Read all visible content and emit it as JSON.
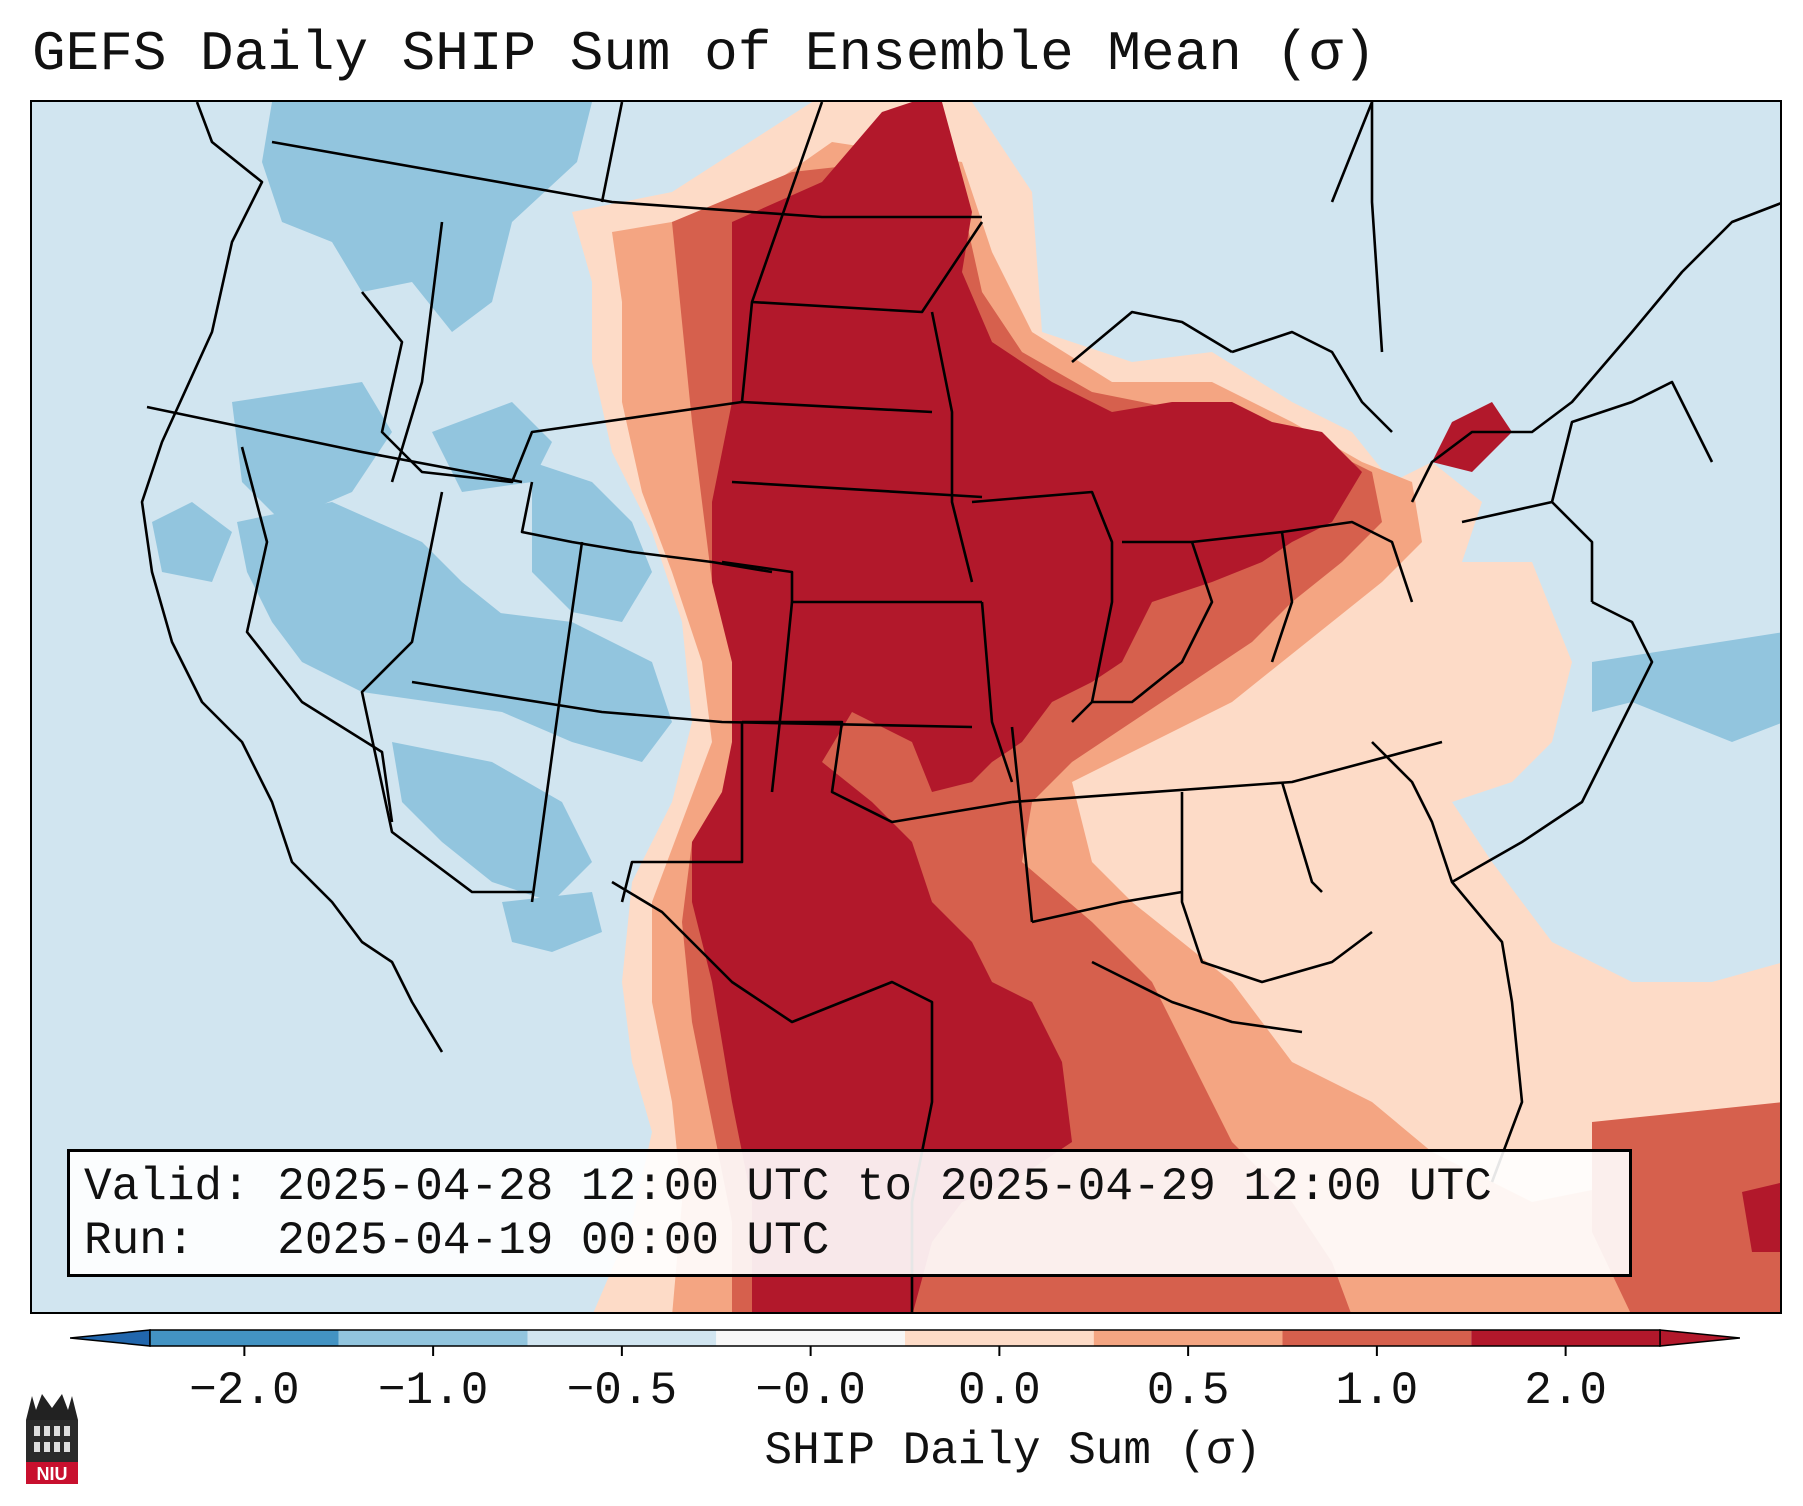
{
  "title": "GEFS Daily SHIP Sum of Ensemble Mean (σ)",
  "info": {
    "valid_label": "Valid:",
    "valid_value": "2025-04-28 12:00 UTC to 2025-04-29 12:00 UTC",
    "run_label": "Run:",
    "run_value": "2025-04-19 00:00 UTC"
  },
  "colorbar": {
    "label": "SHIP Daily Sum (σ)",
    "ticks": [
      "−2.0",
      "−1.0",
      "−0.5",
      "−0.0",
      "0.0",
      "0.5",
      "1.0",
      "2.0"
    ],
    "colors": [
      "#4393c3",
      "#92c5de",
      "#d1e5f0",
      "#f7f7f7",
      "#fddbc7",
      "#f4a582",
      "#d6604d",
      "#b2182b"
    ],
    "extend": "both"
  },
  "map": {
    "region": "Contiguous United States",
    "background_color": "#d1e5f0",
    "field_colors": {
      "strong_positive": "#b2182b",
      "positive": "#d6604d",
      "weak_positive": "#f4a582",
      "slight_positive": "#fddbc7",
      "slight_negative": "#d1e5f0",
      "negative": "#92c5de"
    }
  },
  "logo": {
    "text": "NIU",
    "icon": "university-tower-icon"
  }
}
